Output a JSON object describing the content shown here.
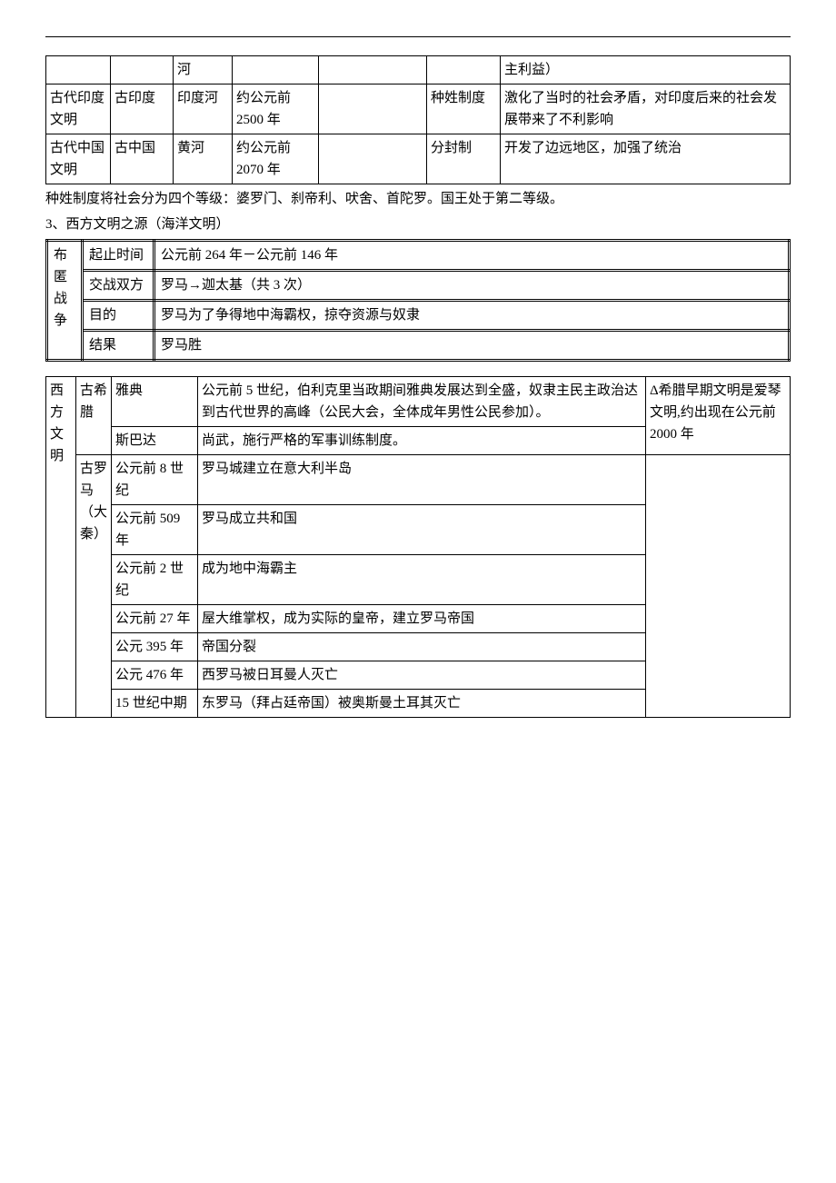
{
  "table1": {
    "rows": [
      [
        "",
        "",
        "河",
        "",
        "",
        "",
        "主利益）"
      ],
      [
        "古代印度文明",
        "古印度",
        "印度河",
        "约公元前 2500 年",
        "",
        "种姓制度",
        "激化了当时的社会矛盾，对印度后来的社会发展带来了不利影响"
      ],
      [
        "古代中国文明",
        "古中国",
        "黄河",
        "约公元前 2070 年",
        "",
        "分封制",
        "开发了边远地区，加强了统治"
      ]
    ]
  },
  "para1": "种姓制度将社会分为四个等级：婆罗门、刹帝利、吠舍、首陀罗。国王处于第二等级。",
  "para2": "3、西方文明之源（海洋文明）",
  "table2": {
    "side": "布匿战争",
    "rows": [
      [
        "起止时间",
        "公元前 264 年－公元前 146 年"
      ],
      [
        "交战双方",
        "罗马→迦太基（共 3 次）"
      ],
      [
        "目的",
        "罗马为了争得地中海霸权，掠夺资源与奴隶"
      ],
      [
        "结果",
        "罗马胜"
      ]
    ]
  },
  "table3": {
    "side": "西方文明",
    "greece_label": "古希腊",
    "greece": [
      [
        "雅典",
        "公元前 5 世纪，伯利克里当政期间雅典发展达到全盛，奴隶主民主政治达到古代世界的高峰（公民大会，全体成年男性公民参加）。"
      ],
      [
        "斯巴达",
        "尚武，施行严格的军事训练制度。"
      ]
    ],
    "greece_note": "Δ希腊早期文明是爱琴文明,约出现在公元前 2000 年",
    "rome_label": "古罗马（大秦）",
    "rome": [
      [
        "公元前 8 世纪",
        "罗马城建立在意大利半岛"
      ],
      [
        "公元前 509 年",
        "罗马成立共和国"
      ],
      [
        "公元前 2 世纪",
        "成为地中海霸主"
      ],
      [
        "公元前 27 年",
        "屋大维掌权，成为实际的皇帝，建立罗马帝国"
      ],
      [
        "公元 395 年",
        "帝国分裂"
      ],
      [
        "公元 476 年",
        "西罗马被日耳曼人灭亡"
      ],
      [
        "15 世纪中期",
        "东罗马（拜占廷帝国）被奥斯曼土耳其灭亡"
      ]
    ]
  }
}
